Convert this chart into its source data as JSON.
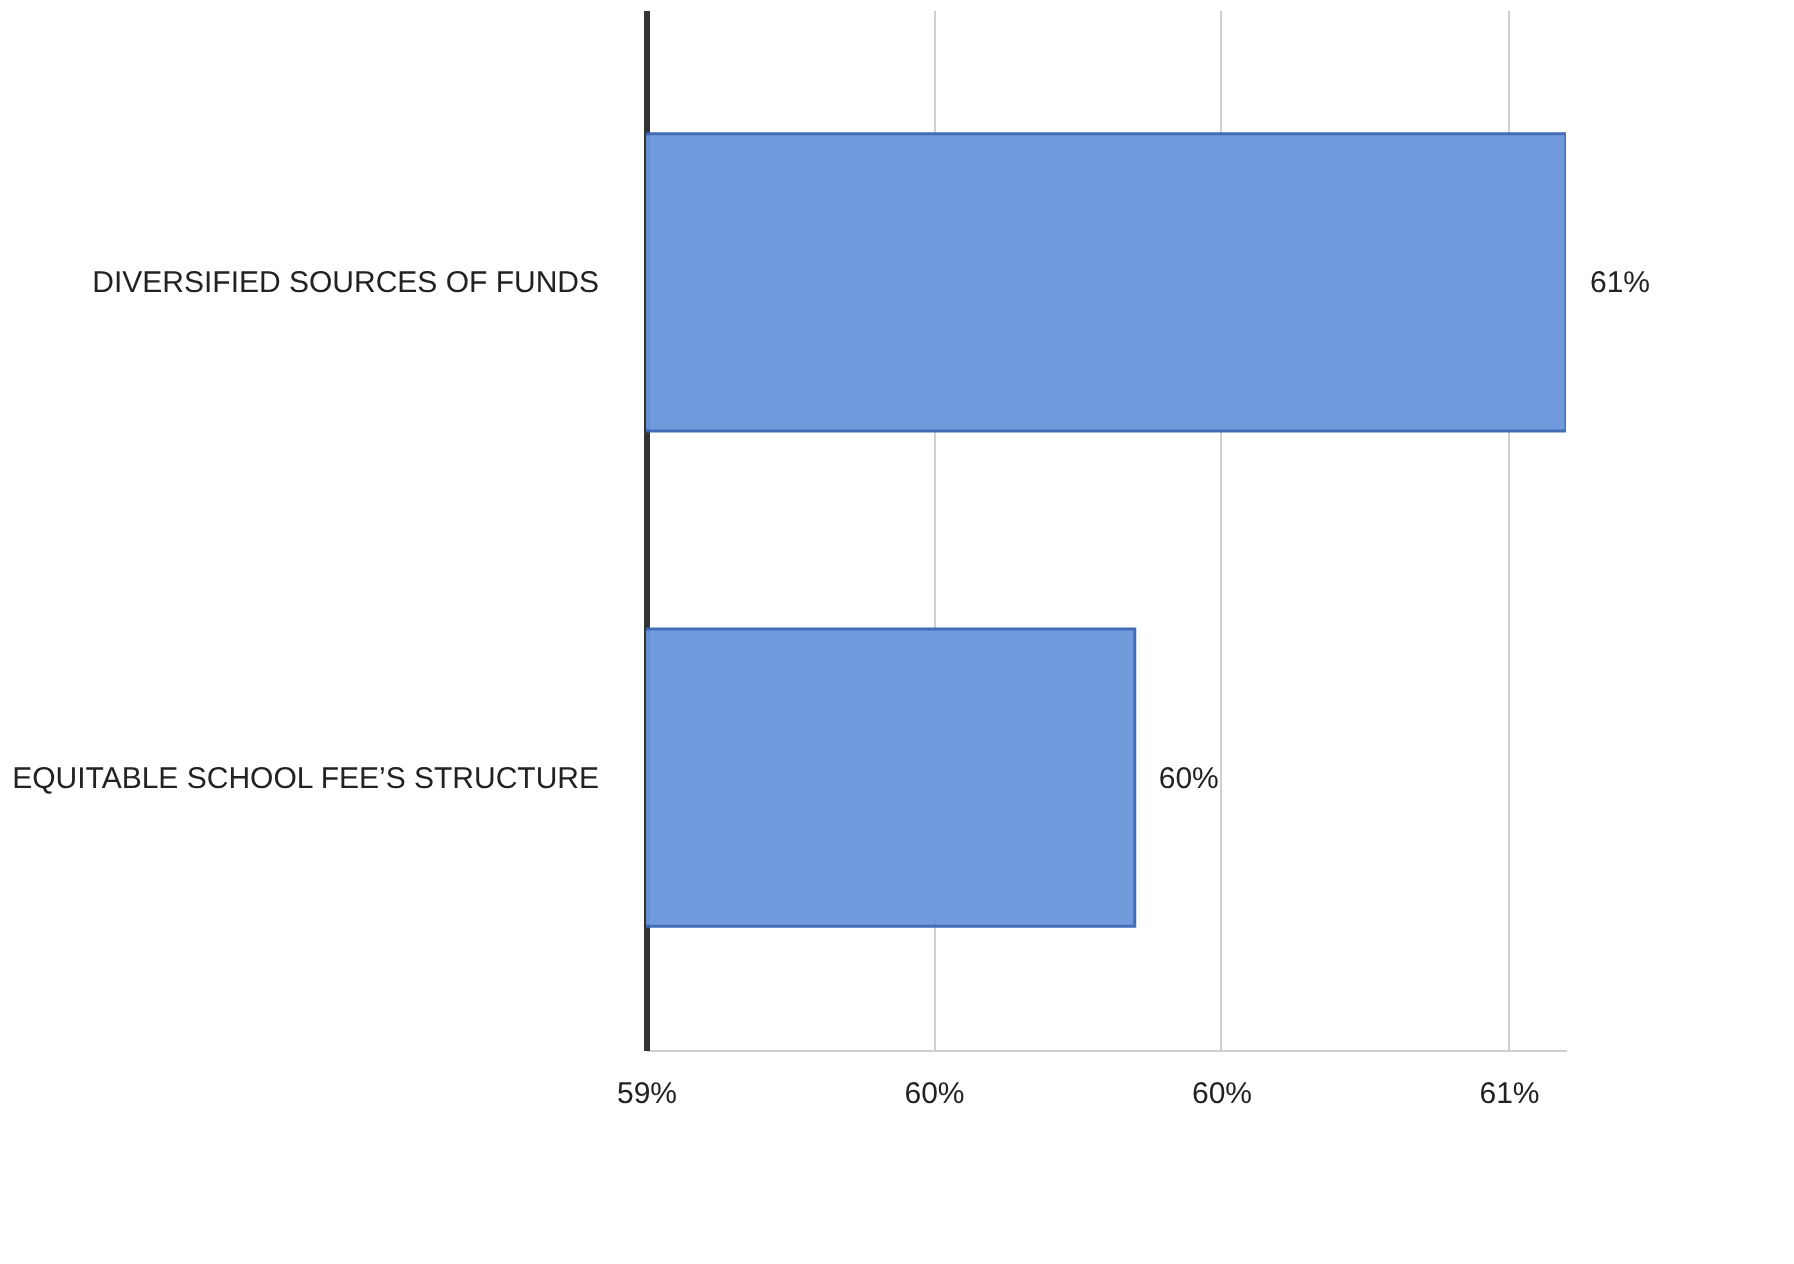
{
  "chart_data": {
    "type": "bar",
    "orientation": "horizontal",
    "categories": [
      "DIVERSIFIED SOURCES OF FUNDS",
      "EQUITABLE SCHOOL FEE’S STRUCTURE"
    ],
    "values": [
      60.6,
      59.85
    ],
    "value_labels": [
      "61%",
      "60%"
    ],
    "color": "#6a95dc",
    "xlim": [
      59,
      60.6
    ],
    "xticks": [
      {
        "value": 59,
        "label": "59%"
      },
      {
        "value": 59.5,
        "label": "60%"
      },
      {
        "value": 60,
        "label": "60%"
      },
      {
        "value": 60.5,
        "label": "61%"
      }
    ],
    "grid": "x"
  }
}
